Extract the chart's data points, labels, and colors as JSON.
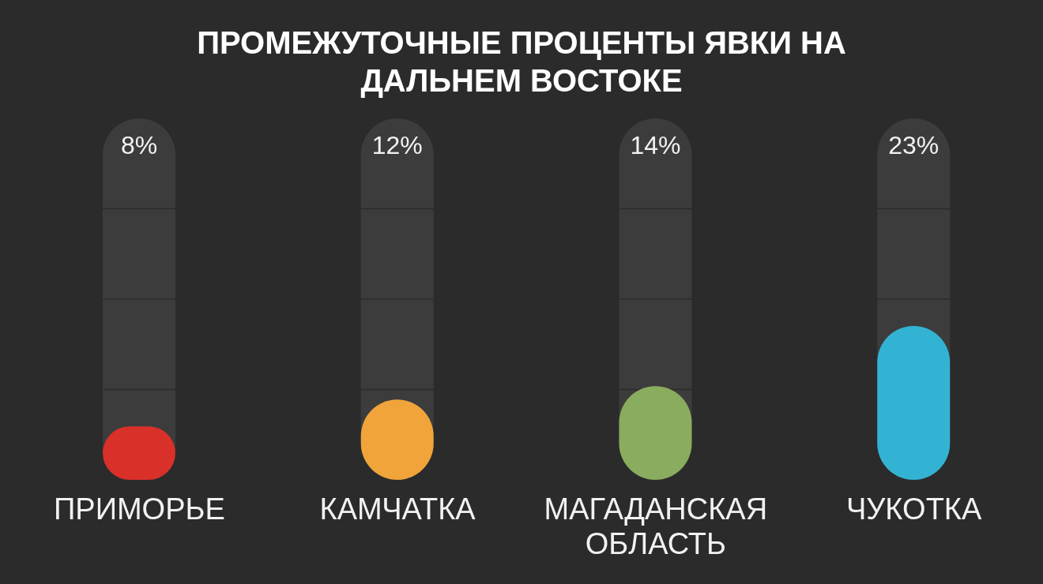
{
  "chart_data": {
    "type": "bar",
    "title": "ПРОМЕЖУТОЧНЫЕ ПРОЦЕНТЫ ЯВКИ НА ДАЛЬНЕМ ВОСТОКЕ",
    "categories": [
      "ПРИМОРЬЕ",
      "КАМЧАТКА",
      "МАГАДАНСКАЯ ОБЛАСТЬ",
      "ЧУКОТКА"
    ],
    "values": [
      8,
      12,
      14,
      23
    ],
    "colors": [
      "#d9302a",
      "#f0a43a",
      "#8aac5e",
      "#33b3d4"
    ],
    "value_labels": [
      "8%",
      "12%",
      "14%",
      "23%"
    ]
  }
}
